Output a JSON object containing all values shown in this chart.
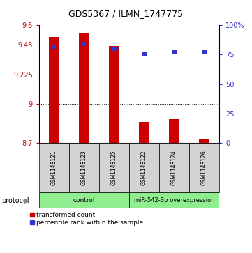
{
  "title": "GDS5367 / ILMN_1747775",
  "samples": [
    "GSM1148121",
    "GSM1148123",
    "GSM1148125",
    "GSM1148122",
    "GSM1148124",
    "GSM1148126"
  ],
  "red_values": [
    9.51,
    9.54,
    9.44,
    8.86,
    8.88,
    8.73
  ],
  "blue_values": [
    82,
    84,
    80,
    76,
    77,
    77
  ],
  "ylim_left": [
    8.7,
    9.6
  ],
  "ylim_right": [
    0,
    100
  ],
  "yticks_left": [
    8.7,
    9.0,
    9.225,
    9.45,
    9.6
  ],
  "ytick_labels_left": [
    "8.7",
    "9",
    "9.225",
    "9.45",
    "9.6"
  ],
  "yticks_right": [
    0,
    25,
    50,
    75,
    100
  ],
  "ytick_labels_right": [
    "0",
    "25",
    "50",
    "75",
    "100%"
  ],
  "dotted_lines": [
    9.0,
    9.225,
    9.45
  ],
  "bar_width": 0.35,
  "bar_color": "#cc0000",
  "dot_color": "#3333cc",
  "baseline": 8.7,
  "control_label": "control",
  "mir_label": "miR-542-3p overexpression",
  "group_color": "#90ee90",
  "protocol_label": "protocol",
  "legend_red": "transformed count",
  "legend_blue": "percentile rank within the sample",
  "title_fontsize": 9,
  "tick_fontsize": 7,
  "label_fontsize": 5.5,
  "proto_fontsize": 6.5,
  "legend_fontsize": 6.5
}
